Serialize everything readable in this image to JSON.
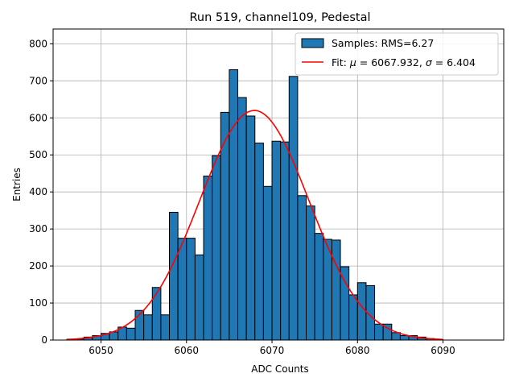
{
  "chart_data": {
    "type": "bar",
    "title": "Run 519, channel109, Pedestal",
    "xlabel": "ADC Counts",
    "ylabel": "Entries",
    "xlim": [
      6044.4,
      6097.1
    ],
    "ylim": [
      0,
      840
    ],
    "xticks": [
      6050,
      6060,
      6070,
      6080,
      6090
    ],
    "yticks": [
      0,
      100,
      200,
      300,
      400,
      500,
      600,
      700,
      800
    ],
    "grid": true,
    "legend": {
      "placement": "top-right",
      "entries": [
        {
          "label": "Samples: RMS=6.27",
          "kind": "bar",
          "color": "#1f77b4"
        },
        {
          "label_prefix": "Fit: ",
          "mu_symbol": "μ",
          "label_mid": " = 6067.932, ",
          "sigma_symbol": "σ",
          "label_suffix": " = 6.404",
          "kind": "line",
          "color": "#ff0000"
        }
      ]
    },
    "histogram": {
      "bin_start": 6046.0,
      "bin_width": 1.0,
      "counts": [
        2,
        3,
        8,
        12,
        18,
        22,
        35,
        32,
        80,
        68,
        142,
        68,
        345,
        275,
        275,
        230,
        443,
        498,
        615,
        730,
        655,
        605,
        532,
        415,
        537,
        535,
        712,
        390,
        362,
        288,
        272,
        270,
        198,
        122,
        155,
        147,
        43,
        43,
        20,
        12,
        12,
        8,
        4,
        1
      ],
      "color": "#1f77b4",
      "edgecolor": "#000000"
    },
    "fit": {
      "type": "gaussian",
      "mu": 6067.932,
      "sigma": 6.404,
      "amplitude": 620,
      "x_range": [
        6046,
        6090
      ],
      "color": "#ff0000"
    }
  }
}
